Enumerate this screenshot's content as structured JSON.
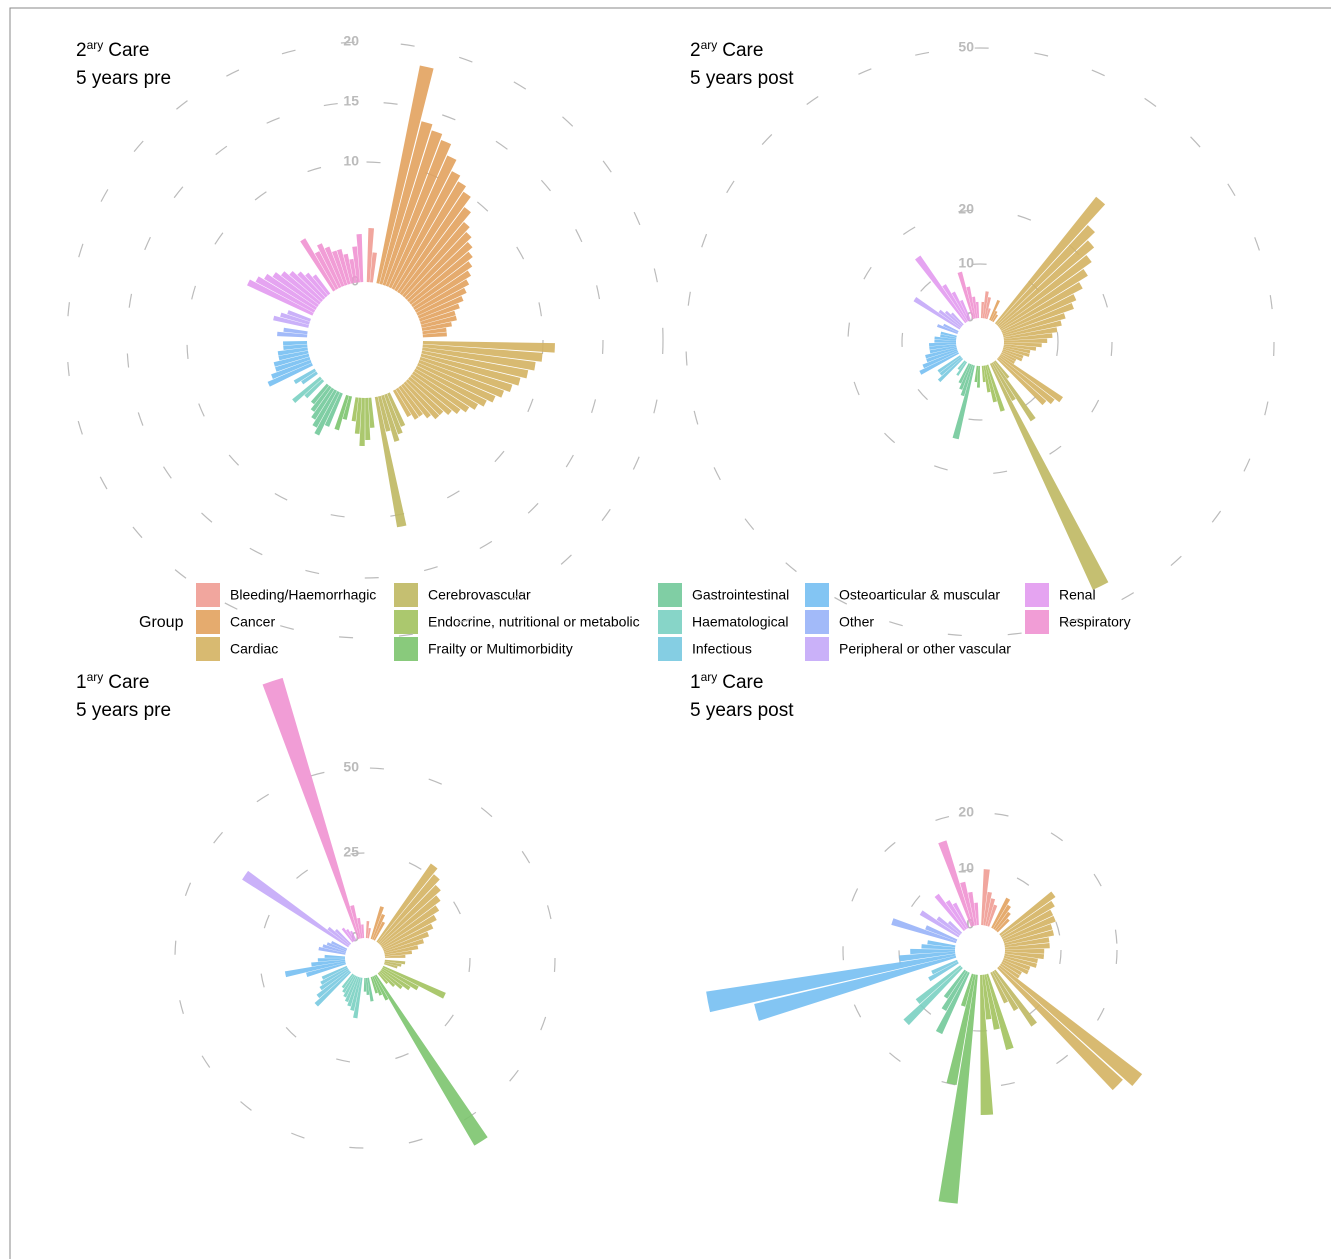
{
  "legend": {
    "title": "Group",
    "entries": [
      {
        "name": "Bleeding/Haemorrhagic",
        "color": "#f09c94"
      },
      {
        "name": "Cancer",
        "color": "#e2a25e"
      },
      {
        "name": "Cardiac",
        "color": "#d4b262"
      },
      {
        "name": "Cerebrovascular",
        "color": "#bfb862"
      },
      {
        "name": "Endocrine, nutritional or metabolic",
        "color": "#a2c25e"
      },
      {
        "name": "Frailty or Multimorbidity",
        "color": "#7cc46e"
      },
      {
        "name": "Gastrointestinal",
        "color": "#72c99a"
      },
      {
        "name": "Haematological",
        "color": "#7ad0c2"
      },
      {
        "name": "Infectious",
        "color": "#78c9e0"
      },
      {
        "name": "Osteoarticular & muscular",
        "color": "#76bff2"
      },
      {
        "name": "Other",
        "color": "#98b2f8"
      },
      {
        "name": "Peripheral or other vascular",
        "color": "#c4a8f8"
      },
      {
        "name": "Renal",
        "color": "#e29af0"
      },
      {
        "name": "Respiratory",
        "color": "#f092d2"
      }
    ]
  },
  "chart_data": [
    {
      "type": "radial-bar",
      "title": {
        "base": "2",
        "sup": "ary",
        "rest": "Care"
      },
      "subtitle": "5 years pre",
      "rlim": [
        0,
        20
      ],
      "rticks": [
        0,
        10,
        15,
        20
      ],
      "grid": true,
      "series": [
        {
          "values": [
            4.5,
            2.5
          ]
        },
        {
          "values": [
            18.5,
            14,
            13.5,
            13,
            12,
            11,
            10.5,
            10,
            9,
            8,
            7.5,
            7,
            6.5,
            6,
            5.5,
            5,
            4.5,
            4,
            3.5,
            3,
            3,
            2.5,
            2,
            2
          ]
        },
        {
          "values": [
            11,
            10,
            9.5,
            9,
            8.5,
            8,
            7.5,
            7,
            6.5,
            6,
            5.5,
            5,
            4.5,
            4,
            4,
            3.5,
            3,
            3,
            2.5
          ]
        },
        {
          "values": [
            3,
            3.5,
            4,
            3,
            11
          ]
        },
        {
          "values": [
            2.5,
            3.5,
            4,
            3,
            2
          ]
        },
        {
          "values": [
            2,
            3
          ]
        },
        {
          "values": [
            3,
            4,
            3.5,
            3,
            2.5,
            2
          ]
        },
        {
          "values": [
            2,
            3
          ]
        },
        {
          "values": [
            1.5,
            2
          ]
        },
        {
          "values": [
            4,
            3.5,
            3,
            3,
            2.5,
            2.5,
            2,
            2
          ]
        },
        {
          "values": [
            2.5,
            2
          ]
        },
        {
          "values": [
            3,
            2.5,
            2
          ]
        },
        {
          "values": [
            6,
            5.5,
            5,
            4.5,
            4,
            3.5,
            3,
            2.5,
            2
          ]
        },
        {
          "values": [
            5,
            3.5,
            4,
            3.5,
            3,
            3,
            2.5,
            2,
            3,
            4
          ]
        }
      ]
    },
    {
      "type": "radial-bar",
      "title": {
        "base": "2",
        "sup": "ary",
        "rest": "Care"
      },
      "subtitle": "5 years post",
      "rlim": [
        0,
        50
      ],
      "rticks": [
        0,
        10,
        20,
        50
      ],
      "grid": true,
      "series": [
        {
          "values": [
            3,
            5,
            4,
            2
          ]
        },
        {
          "values": [
            4,
            2,
            1.5
          ]
        },
        {
          "values": [
            30,
            25,
            23,
            21,
            19,
            17,
            15,
            14,
            12,
            11,
            10,
            9,
            8,
            7,
            6,
            5,
            5,
            4,
            4,
            3,
            3,
            14,
            13,
            12
          ]
        },
        {
          "values": [
            4,
            13,
            8,
            46
          ]
        },
        {
          "values": [
            9,
            7,
            5,
            3
          ]
        },
        {
          "values": [
            4,
            3
          ]
        },
        {
          "values": [
            14,
            6,
            5,
            4
          ]
        },
        {
          "values": [
            3,
            2
          ]
        },
        {
          "values": [
            6,
            5,
            5
          ]
        },
        {
          "values": [
            8,
            7,
            6,
            6,
            5,
            5,
            5,
            4,
            4,
            3,
            3
          ]
        },
        {
          "values": [
            4,
            3
          ]
        },
        {
          "values": [
            10,
            5,
            4,
            3
          ]
        },
        {
          "values": [
            15,
            8,
            6,
            4
          ]
        },
        {
          "values": [
            9,
            6,
            4,
            3
          ]
        }
      ]
    },
    {
      "type": "radial-bar",
      "title": {
        "base": "1",
        "sup": "ary",
        "rest": "Care"
      },
      "subtitle": "5 years pre",
      "rlim": [
        0,
        50
      ],
      "rticks": [
        0,
        25,
        50
      ],
      "grid": true,
      "series": [
        {
          "values": [
            5,
            3
          ]
        },
        {
          "values": [
            10,
            8,
            6
          ]
        },
        {
          "values": [
            28,
            26,
            24,
            22,
            20,
            18,
            16,
            14,
            12,
            10,
            8,
            6
          ]
        },
        {
          "values": [
            6,
            5,
            4
          ]
        },
        {
          "values": [
            20,
            12,
            10,
            8,
            6,
            4
          ]
        },
        {
          "values": [
            58,
            8,
            6,
            5
          ]
        },
        {
          "values": [
            7,
            5,
            4
          ]
        },
        {
          "values": [
            12,
            10,
            9,
            8,
            7,
            6,
            5
          ]
        },
        {
          "values": [
            14,
            12,
            10,
            9,
            8
          ]
        },
        {
          "values": [
            12,
            18,
            10,
            8,
            6
          ]
        },
        {
          "values": [
            8,
            7,
            6,
            5
          ]
        },
        {
          "values": [
            37,
            8,
            6
          ]
        },
        {
          "values": [
            5,
            4,
            3
          ]
        },
        {
          "values": [
            80,
            10,
            6,
            4
          ]
        }
      ]
    },
    {
      "type": "radial-bar",
      "title": {
        "base": "1",
        "sup": "ary",
        "rest": "Care"
      },
      "subtitle": "5 years post",
      "rlim": [
        0,
        20
      ],
      "rticks": [
        0,
        10,
        20
      ],
      "grid": true,
      "series": [
        {
          "values": [
            10,
            6,
            5,
            4
          ]
        },
        {
          "values": [
            6,
            5,
            4,
            3
          ]
        },
        {
          "values": [
            12,
            11,
            10,
            10,
            9,
            9,
            8,
            8,
            7,
            7,
            6,
            6,
            5,
            5,
            4,
            4,
            32,
            30
          ]
        },
        {
          "values": [
            12,
            8,
            6
          ]
        },
        {
          "values": [
            14,
            10,
            8,
            25
          ]
        },
        {
          "values": [
            41,
            20,
            6
          ]
        },
        {
          "values": [
            12,
            8,
            6
          ]
        },
        {
          "values": [
            14,
            10
          ]
        },
        {
          "values": [
            6,
            5
          ]
        },
        {
          "values": [
            37,
            45,
            10,
            8,
            6,
            5
          ]
        },
        {
          "values": [
            12,
            6
          ]
        },
        {
          "values": [
            8,
            5,
            3
          ]
        },
        {
          "values": [
            8,
            6,
            5
          ]
        },
        {
          "values": [
            16,
            8,
            6,
            4
          ]
        }
      ]
    }
  ]
}
